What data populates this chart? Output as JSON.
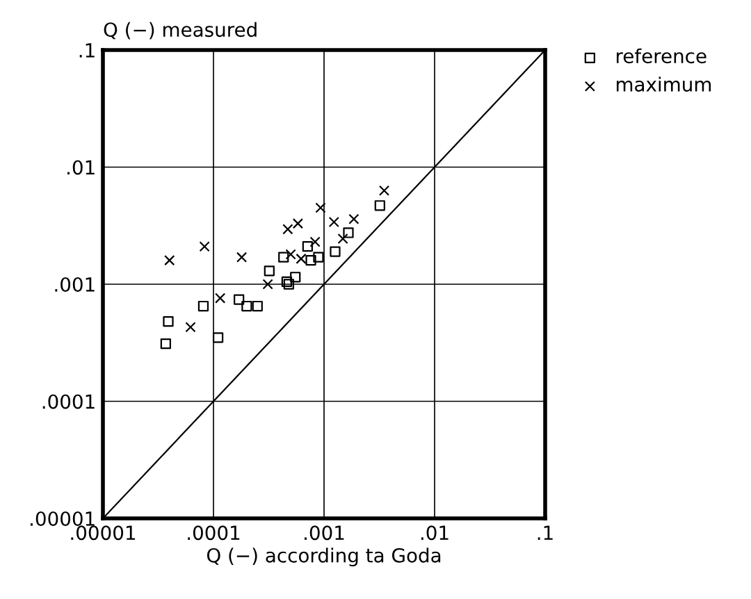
{
  "chart_data": {
    "type": "scatter",
    "xlabel": "Q (−) according ta Goda",
    "ylabel": "Q (−) measured",
    "log": "xy",
    "xlim": [
      1e-05,
      0.1
    ],
    "ylim": [
      1e-05,
      0.1
    ],
    "xticks": [
      {
        "value": 1e-05,
        "label": ".00001"
      },
      {
        "value": 0.0001,
        "label": ".0001"
      },
      {
        "value": 0.001,
        "label": ".001"
      },
      {
        "value": 0.01,
        "label": ".01"
      },
      {
        "value": 0.1,
        "label": ".1"
      }
    ],
    "yticks": [
      {
        "value": 1e-05,
        "label": ".00001"
      },
      {
        "value": 0.0001,
        "label": ".0001"
      },
      {
        "value": 0.001,
        "label": ".001"
      },
      {
        "value": 0.01,
        "label": ".01"
      },
      {
        "value": 0.1,
        "label": ".1"
      }
    ],
    "grid": true,
    "legend": "top right",
    "series": [
      {
        "name": "reference",
        "color": "#000000",
        "marker": "square",
        "x": [
          3.9e-05,
          3.7e-05,
          8.1e-05,
          0.00011,
          0.00017,
          0.0002,
          0.00025,
          0.00032,
          0.00046,
          0.00048,
          0.00055,
          0.00043,
          0.00071,
          0.00076,
          0.00089,
          0.00126,
          0.00166,
          0.0032
        ],
        "values": [
          0.00048,
          0.00031,
          0.00065,
          0.00035,
          0.00074,
          0.00065,
          0.00065,
          0.0013,
          0.00105,
          0.001,
          0.00115,
          0.0017,
          0.0021,
          0.0016,
          0.0017,
          0.0019,
          0.00275,
          0.0047
        ]
      },
      {
        "name": "maximum",
        "color": "#000000",
        "marker": "cross",
        "x": [
          4e-05,
          6.2e-05,
          8.3e-05,
          0.000115,
          0.00018,
          0.00031,
          0.00047,
          0.00058,
          0.0005,
          0.00062,
          0.00083,
          0.00093,
          0.00123,
          0.00186,
          0.00148,
          0.0035
        ],
        "values": [
          0.0016,
          0.00043,
          0.0021,
          0.00076,
          0.0017,
          0.001,
          0.00295,
          0.0033,
          0.0018,
          0.00165,
          0.0023,
          0.0045,
          0.0034,
          0.0036,
          0.00245,
          0.0063
        ]
      },
      {
        "type": "line",
        "color": "#000000",
        "marker": "none",
        "x": [
          1e-05,
          0.1
        ],
        "values": [
          1e-05,
          0.1
        ]
      }
    ]
  }
}
